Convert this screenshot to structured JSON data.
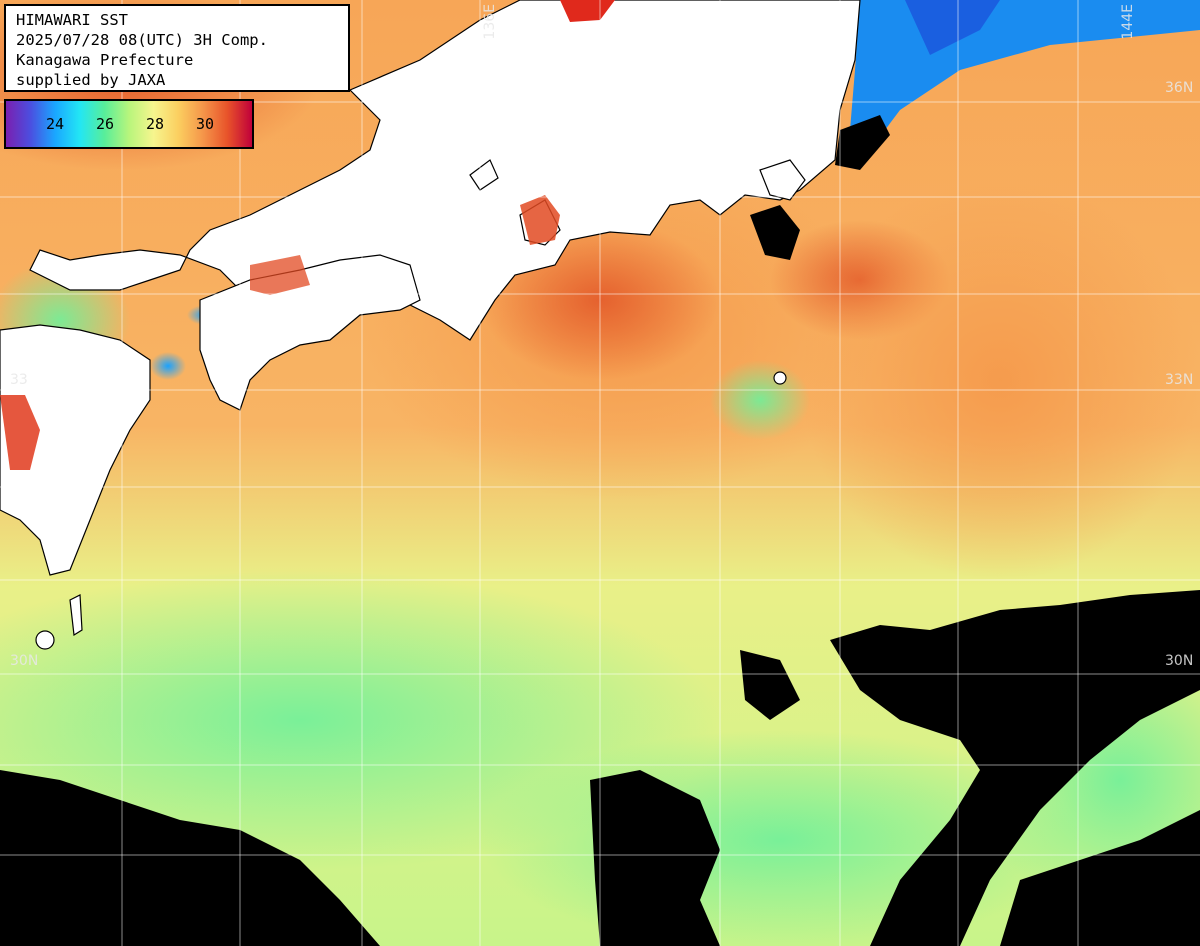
{
  "title": {
    "line1": "HIMAWARI SST",
    "line2": "2025/07/28 08(UTC) 3H Comp.",
    "line3": "Kanagawa Prefecture",
    "line4": "supplied by JAXA"
  },
  "legend": {
    "ticks": [
      "24",
      "26",
      "28",
      "30"
    ]
  },
  "grid_labels": {
    "lon_136": "136E",
    "lon_144": "144E",
    "lat_36": "36N",
    "lat_33": "33N",
    "lat_30_left": "30N",
    "lat_30_right": "30N",
    "lat_33_left": "33"
  }
}
